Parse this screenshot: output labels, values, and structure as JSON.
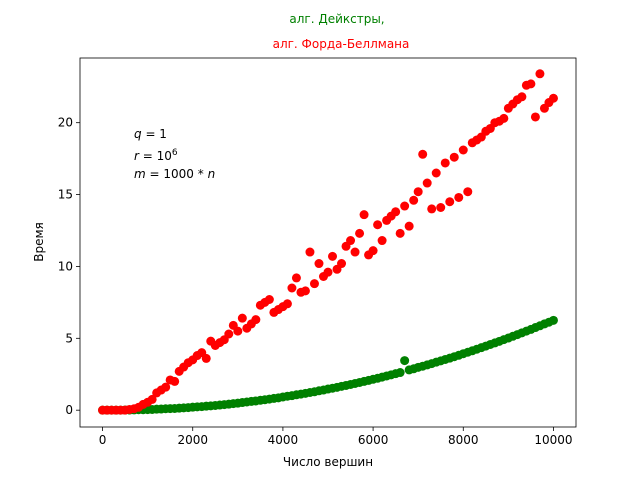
{
  "chart_data": {
    "type": "scatter",
    "title_lines": [
      {
        "text": "алг. Дейкстры,",
        "color": "#008000"
      },
      {
        "text": "алг. Форда-Беллмана",
        "color": "#ff0000"
      }
    ],
    "xlabel": "Число вершин",
    "ylabel": "Время",
    "xlim": [
      -500,
      10500
    ],
    "ylim": [
      -1.17,
      24.5
    ],
    "xticks": [
      0,
      2000,
      4000,
      6000,
      8000,
      10000
    ],
    "yticks": [
      0,
      5,
      10,
      15,
      20
    ],
    "grid": false,
    "annotations": [
      "q = 1",
      "r = 10^6",
      "m = 1000 * n"
    ],
    "series": [
      {
        "color": "#008000",
        "x": [
          0,
          100,
          200,
          300,
          400,
          500,
          600,
          700,
          800,
          900,
          1000,
          1100,
          1200,
          1300,
          1400,
          1500,
          1600,
          1700,
          1800,
          1900,
          2000,
          2100,
          2200,
          2300,
          2400,
          2500,
          2600,
          2700,
          2800,
          2900,
          3000,
          3100,
          3200,
          3300,
          3400,
          3500,
          3600,
          3700,
          3800,
          3900,
          4000,
          4100,
          4200,
          4300,
          4400,
          4500,
          4600,
          4700,
          4800,
          4900,
          5000,
          5100,
          5200,
          5300,
          5400,
          5500,
          5600,
          5700,
          5800,
          5900,
          6000,
          6100,
          6200,
          6300,
          6400,
          6500,
          6600,
          6700,
          6800,
          6900,
          7000,
          7100,
          7200,
          7300,
          7400,
          7500,
          7600,
          7700,
          7800,
          7900,
          8000,
          8100,
          8200,
          8300,
          8400,
          8500,
          8600,
          8700,
          8800,
          8900,
          9000,
          9100,
          9200,
          9300,
          9400,
          9500,
          9600,
          9700,
          9800,
          9900,
          10000
        ],
        "y": [
          0.0,
          0.0,
          0.0,
          0.0,
          0.0,
          0.01,
          0.01,
          0.02,
          0.03,
          0.03,
          0.04,
          0.05,
          0.07,
          0.08,
          0.1,
          0.11,
          0.12,
          0.14,
          0.16,
          0.18,
          0.21,
          0.23,
          0.25,
          0.28,
          0.3,
          0.33,
          0.36,
          0.39,
          0.42,
          0.46,
          0.49,
          0.53,
          0.57,
          0.61,
          0.64,
          0.69,
          0.73,
          0.77,
          0.82,
          0.86,
          0.92,
          0.97,
          1.01,
          1.07,
          1.12,
          1.17,
          1.23,
          1.28,
          1.35,
          1.4,
          1.47,
          1.53,
          1.59,
          1.66,
          1.72,
          1.79,
          1.86,
          1.93,
          2.0,
          2.07,
          2.15,
          2.22,
          2.3,
          2.38,
          2.46,
          2.54,
          2.62,
          3.45,
          2.8,
          2.88,
          2.98,
          3.06,
          3.15,
          3.24,
          3.34,
          3.43,
          3.53,
          3.62,
          3.72,
          3.82,
          3.93,
          4.03,
          4.13,
          4.24,
          4.35,
          4.46,
          4.57,
          4.68,
          4.79,
          4.91,
          5.02,
          5.14,
          5.26,
          5.38,
          5.5,
          5.62,
          5.75,
          5.87,
          6.0,
          6.12,
          6.25
        ]
      },
      {
        "color": "#ff0000",
        "x": [
          0,
          100,
          200,
          300,
          400,
          500,
          600,
          700,
          800,
          900,
          1000,
          1100,
          1200,
          1300,
          1400,
          1500,
          1600,
          1700,
          1800,
          1900,
          2000,
          2100,
          2200,
          2300,
          2400,
          2500,
          2600,
          2700,
          2800,
          2900,
          3000,
          3100,
          3200,
          3300,
          3400,
          3500,
          3600,
          3700,
          3800,
          3900,
          4000,
          4100,
          4200,
          4300,
          4400,
          4500,
          4600,
          4700,
          4800,
          4900,
          5000,
          5100,
          5200,
          5300,
          5400,
          5500,
          5600,
          5700,
          5800,
          5900,
          6000,
          6100,
          6200,
          6300,
          6400,
          6500,
          6600,
          6700,
          6800,
          6900,
          7000,
          7100,
          7200,
          7300,
          7400,
          7500,
          7600,
          7700,
          7800,
          7900,
          8000,
          8100,
          8200,
          8300,
          8400,
          8500,
          8600,
          8700,
          8800,
          8900,
          9000,
          9100,
          9200,
          9300,
          9400,
          9500,
          9600,
          9700,
          9800,
          9900,
          10000
        ],
        "y": [
          0.0,
          0.0,
          0.0,
          0.0,
          0.0,
          0.0,
          0.05,
          0.1,
          0.2,
          0.4,
          0.55,
          0.75,
          1.2,
          1.4,
          1.6,
          2.1,
          2.0,
          2.7,
          3.0,
          3.3,
          3.5,
          3.8,
          4.0,
          3.6,
          4.8,
          4.5,
          4.7,
          4.9,
          5.3,
          5.9,
          5.5,
          6.4,
          5.7,
          6.0,
          6.3,
          7.3,
          7.5,
          7.7,
          6.8,
          7.0,
          7.2,
          7.4,
          8.5,
          9.2,
          8.2,
          8.3,
          11.0,
          8.8,
          10.2,
          9.3,
          9.6,
          10.7,
          9.8,
          10.2,
          11.4,
          11.8,
          11.0,
          12.3,
          13.6,
          10.8,
          11.1,
          12.9,
          11.8,
          13.2,
          13.5,
          13.8,
          12.3,
          14.2,
          12.8,
          14.6,
          15.2,
          17.8,
          15.8,
          14.0,
          16.5,
          14.1,
          17.2,
          14.5,
          17.6,
          14.8,
          18.1,
          15.2,
          18.6,
          18.8,
          19.0,
          19.4,
          19.6,
          20.0,
          20.1,
          20.3,
          21.0,
          21.3,
          21.6,
          21.8,
          22.6,
          22.7,
          20.4,
          23.4,
          21.0,
          21.4,
          21.7
        ]
      }
    ]
  }
}
